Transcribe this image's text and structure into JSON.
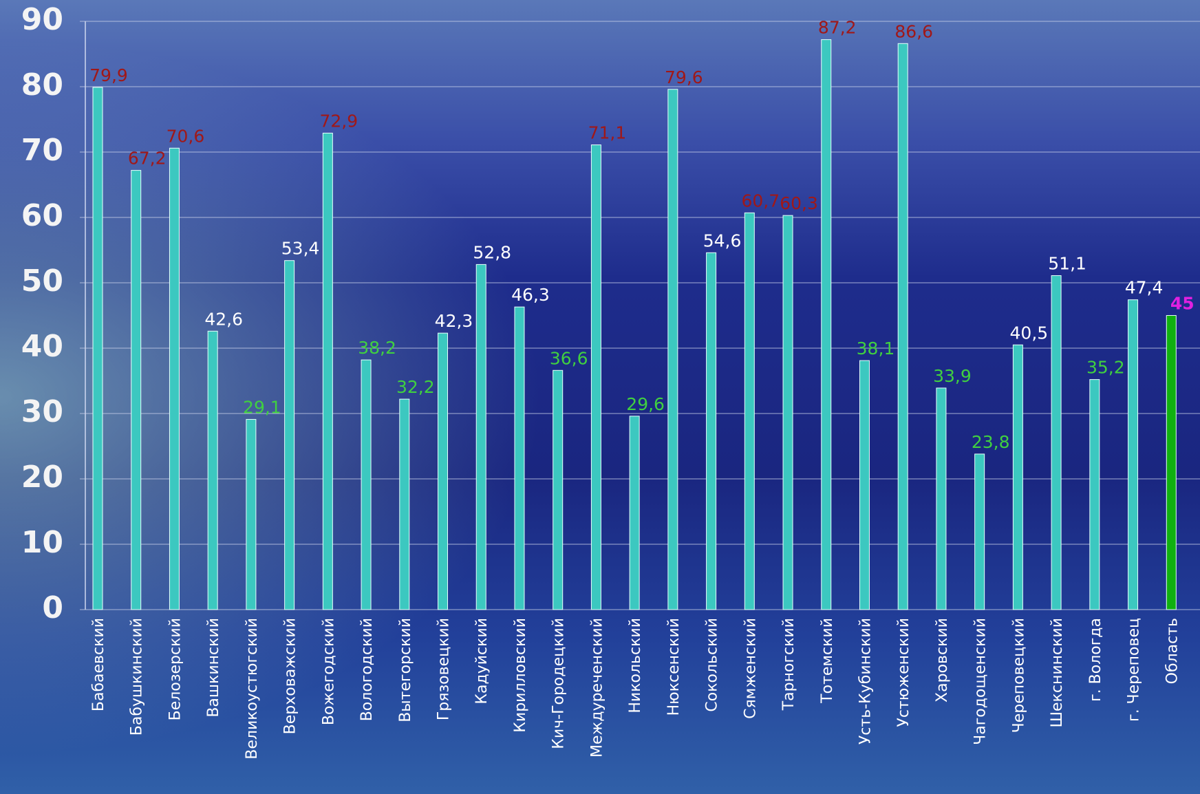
{
  "chart_data": {
    "type": "bar",
    "categories": [
      "Бабаевский",
      "Бабушкинский",
      "Белозерский",
      "Вашкинский",
      "Великоустюгский",
      "Верховажский",
      "Вожегодский",
      "Вологодский",
      "Вытегорский",
      "Грязовецкий",
      "Кадуйский",
      "Кирилловский",
      "Кич-Городецкий",
      "Междуреченский",
      "Никольский",
      "Нюксенский",
      "Сокольский",
      "Сямженский",
      "Тарногский",
      "Тотемский",
      "Усть-Кубинский",
      "Устюженский",
      "Харовский",
      "Чагодощенский",
      "Череповецкий",
      "Шекснинский",
      "г. Вологда",
      "г. Череповец",
      "Область"
    ],
    "values": [
      79.9,
      67.2,
      70.6,
      42.6,
      29.1,
      53.4,
      72.9,
      38.2,
      32.2,
      42.3,
      52.8,
      46.3,
      36.6,
      71.1,
      29.6,
      79.6,
      54.6,
      60.7,
      60.3,
      87.2,
      38.1,
      86.6,
      33.9,
      23.8,
      40.5,
      51.1,
      35.2,
      47.4,
      45
    ],
    "value_labels": [
      "79,9",
      "67,2",
      "70,6",
      "42,6",
      "29,1",
      "53,4",
      "72,9",
      "38,2",
      "32,2",
      "42,3",
      "52,8",
      "46,3",
      "36,6",
      "71,1",
      "29,6",
      "79,6",
      "54,6",
      "60,7",
      "60,3",
      "87,2",
      "38,1",
      "86,6",
      "33,9",
      "23,8",
      "40,5",
      "51,1",
      "35,2",
      "47,4",
      "45"
    ],
    "colors": [
      "#3cc8c0",
      "#3cc8c0",
      "#3cc8c0",
      "#3cc8c0",
      "#3cc8c0",
      "#3cc8c0",
      "#3cc8c0",
      "#3cc8c0",
      "#3cc8c0",
      "#3cc8c0",
      "#3cc8c0",
      "#3cc8c0",
      "#3cc8c0",
      "#3cc8c0",
      "#3cc8c0",
      "#3cc8c0",
      "#3cc8c0",
      "#3cc8c0",
      "#3cc8c0",
      "#3cc8c0",
      "#3cc8c0",
      "#3cc8c0",
      "#3cc8c0",
      "#3cc8c0",
      "#3cc8c0",
      "#3cc8c0",
      "#3cc8c0",
      "#3cc8c0",
      "#10b010"
    ],
    "label_colors": [
      "#a01818",
      "#a01818",
      "#a01818",
      "#ffffff",
      "#40d040",
      "#ffffff",
      "#a01818",
      "#40d040",
      "#40d040",
      "#ffffff",
      "#ffffff",
      "#ffffff",
      "#40d040",
      "#a01818",
      "#40d040",
      "#a01818",
      "#ffffff",
      "#a01818",
      "#a01818",
      "#a01818",
      "#40d040",
      "#a01818",
      "#40d040",
      "#40d040",
      "#ffffff",
      "#ffffff",
      "#40d040",
      "#ffffff",
      "#e020e0"
    ],
    "ylim": [
      0,
      90
    ],
    "yticks": [
      0,
      10,
      20,
      30,
      40,
      50,
      60,
      70,
      80,
      90
    ],
    "grid": true
  }
}
